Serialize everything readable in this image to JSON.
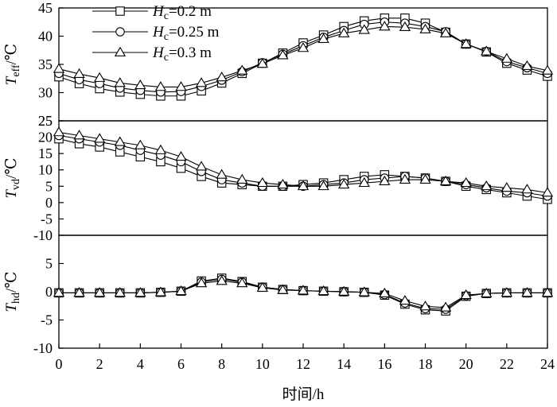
{
  "chart_data": {
    "type": "line",
    "xlabel": "时间/h",
    "xlim": [
      0,
      24
    ],
    "xticks": [
      0,
      2,
      4,
      6,
      8,
      10,
      12,
      14,
      16,
      18,
      20,
      22,
      24
    ],
    "x": [
      0,
      1,
      2,
      3,
      4,
      5,
      6,
      7,
      8,
      9,
      10,
      11,
      12,
      13,
      14,
      15,
      16,
      17,
      18,
      19,
      20,
      21,
      22,
      23,
      24
    ],
    "legend": {
      "placement": "top-left",
      "entries": [
        {
          "var": "H",
          "sub": "c",
          "value": "=0.2 m",
          "marker": "square"
        },
        {
          "var": "H",
          "sub": "c",
          "value": "=0.25 m",
          "marker": "circle"
        },
        {
          "var": "H",
          "sub": "c",
          "value": "=0.3 m",
          "marker": "triangle"
        }
      ]
    },
    "panels": [
      {
        "ylabel": {
          "var": "T",
          "sub": "eff",
          "unit": "/℃"
        },
        "ylim": [
          25,
          45
        ],
        "yticks": [
          25,
          30,
          35,
          40,
          45
        ],
        "series": [
          {
            "marker": "square",
            "values": [
              32.8,
              31.6,
              30.7,
              30.1,
              29.7,
              29.4,
              29.4,
              30.3,
              31.7,
              33.4,
              35.2,
              37.0,
              38.8,
              40.2,
              41.7,
              42.7,
              43.2,
              43.2,
              42.3,
              40.7,
              38.6,
              37.2,
              35.2,
              34.0,
              32.9
            ]
          },
          {
            "marker": "circle",
            "values": [
              33.4,
              32.3,
              31.6,
              30.8,
              30.4,
              30.1,
              30.2,
              31.1,
              32.2,
              33.7,
              35.3,
              36.8,
              38.3,
              39.8,
              41.0,
              42.1,
              42.5,
              42.3,
              41.7,
              40.8,
              38.6,
              37.3,
              35.5,
              34.4,
              33.4
            ]
          },
          {
            "marker": "triangle",
            "values": [
              34.2,
              33.3,
              32.6,
              31.7,
              31.3,
              31.0,
              31.0,
              31.7,
              32.7,
              33.9,
              35.1,
              36.6,
              37.9,
              39.5,
              40.5,
              41.1,
              41.7,
              41.6,
              41.2,
              40.5,
              38.6,
              37.3,
              36.0,
              34.7,
              33.9
            ]
          }
        ]
      },
      {
        "ylabel": {
          "var": "T",
          "sub": "vd",
          "unit": "/℃"
        },
        "ylim": [
          -10,
          25
        ],
        "yticks": [
          -10,
          -5,
          0,
          5,
          10,
          15,
          20,
          25
        ],
        "series": [
          {
            "marker": "square",
            "values": [
              19.5,
              18.0,
              17.0,
              15.5,
              14.0,
              12.5,
              10.5,
              8.0,
              6.0,
              5.5,
              5.0,
              5.0,
              5.5,
              6.0,
              7.0,
              8.0,
              8.5,
              8.0,
              7.5,
              6.5,
              5.0,
              4.0,
              3.0,
              2.0,
              1.0
            ]
          },
          {
            "marker": "circle",
            "values": [
              20.5,
              19.5,
              18.5,
              17.5,
              16.0,
              14.5,
              12.5,
              9.5,
              7.0,
              6.0,
              5.0,
              5.0,
              5.0,
              5.5,
              6.0,
              7.0,
              7.5,
              8.0,
              7.5,
              6.5,
              5.5,
              4.5,
              3.5,
              3.0,
              2.0
            ]
          },
          {
            "marker": "triangle",
            "values": [
              21.5,
              20.5,
              19.5,
              18.5,
              17.5,
              16.0,
              14.0,
              11.0,
              8.5,
              7.0,
              6.0,
              5.5,
              5.0,
              5.0,
              5.5,
              6.0,
              6.5,
              7.0,
              7.0,
              6.5,
              6.0,
              5.0,
              4.5,
              4.0,
              3.0
            ]
          }
        ]
      },
      {
        "ylabel": {
          "var": "T",
          "sub": "hd",
          "unit": "/℃"
        },
        "ylim": [
          -10,
          10
        ],
        "yticks": [
          -10,
          -5,
          0,
          5
        ],
        "series": [
          {
            "marker": "square",
            "values": [
              -0.2,
              -0.2,
              -0.2,
              -0.2,
              -0.2,
              -0.1,
              0.1,
              1.9,
              2.4,
              1.8,
              0.8,
              0.4,
              0.2,
              0.1,
              0.0,
              -0.1,
              -0.6,
              -2.2,
              -3.2,
              -3.4,
              -0.8,
              -0.3,
              -0.2,
              -0.2,
              -0.2
            ]
          },
          {
            "marker": "circle",
            "values": [
              -0.2,
              -0.2,
              -0.2,
              -0.2,
              -0.2,
              -0.1,
              0.1,
              1.7,
              2.2,
              1.7,
              0.8,
              0.4,
              0.2,
              0.1,
              0.0,
              -0.1,
              -0.5,
              -2.0,
              -3.0,
              -3.1,
              -0.7,
              -0.3,
              -0.2,
              -0.2,
              -0.2
            ]
          },
          {
            "marker": "triangle",
            "values": [
              -0.2,
              -0.2,
              -0.2,
              -0.2,
              -0.2,
              -0.1,
              0.1,
              1.5,
              1.9,
              1.5,
              0.7,
              0.3,
              0.2,
              0.1,
              0.0,
              -0.1,
              -0.3,
              -1.6,
              -2.6,
              -2.8,
              -0.6,
              -0.3,
              -0.2,
              -0.2,
              -0.2
            ]
          }
        ]
      }
    ]
  }
}
